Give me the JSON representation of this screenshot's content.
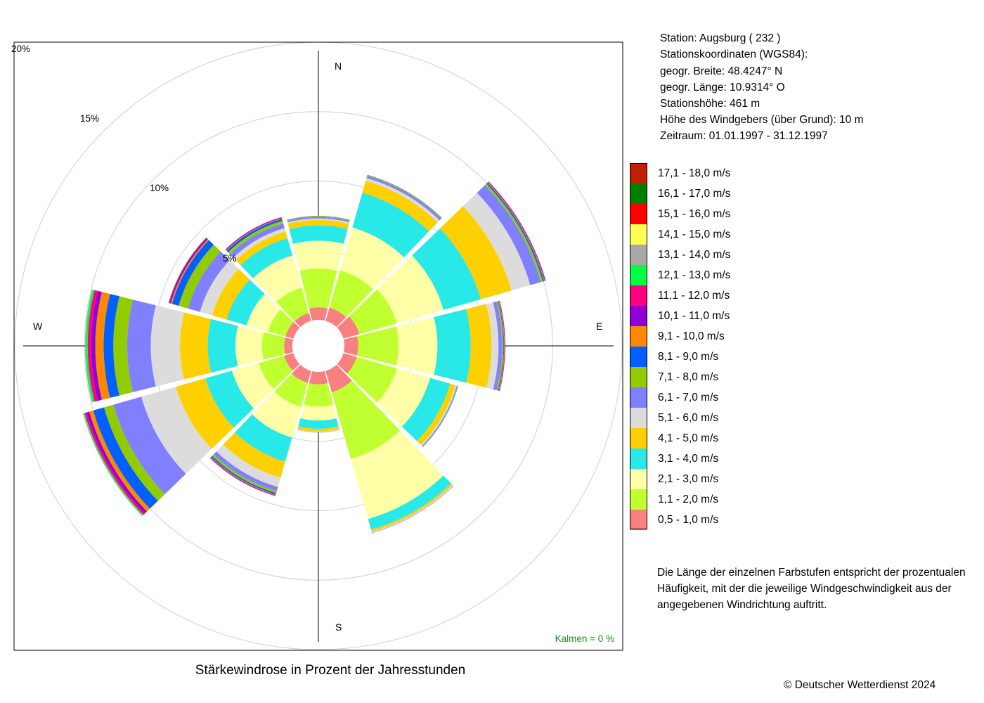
{
  "title": "Stärkewindrose in Prozent der Jahresstunden",
  "station_info": [
    "Station:  Augsburg  ( 232 )",
    "Stationskoordinaten (WGS84):",
    "geogr. Breite: 48.4247° N",
    "geogr. Länge: 10.9314° O",
    "Stationshöhe: 461 m",
    "Höhe des Windgebers (über Grund): 10 m",
    "Zeitraum: 01.01.1997 - 31.12.1997"
  ],
  "calms_label": "Kalmen  =  0 %",
  "note": "Die Länge der einzelnen Farbstufen entspricht der prozentualen Häufigkeit, mit der die jeweilige Windgeschwindigkeit aus der angegebenen Windrichtung auftritt.",
  "copyright": "© Deutscher Wetterdienst  2024",
  "chart_data": {
    "type": "windrose",
    "direction_labels": [
      "N",
      "E",
      "S",
      "W"
    ],
    "ring_labels": [
      "5%",
      "10%",
      "15%",
      "20%"
    ],
    "ring_values": [
      5,
      10,
      15,
      20
    ],
    "sector_angles_deg": [
      0,
      30,
      60,
      90,
      120,
      150,
      180,
      210,
      240,
      270,
      300,
      330
    ],
    "speed_classes": [
      {
        "label": "0,5 - 1,0 m/s",
        "color": "#f88080"
      },
      {
        "label": "1,1 - 2,0 m/s",
        "color": "#c0ff30"
      },
      {
        "label": "2,1 - 3,0 m/s",
        "color": "#ffffa8"
      },
      {
        "label": "3,1 - 4,0 m/s",
        "color": "#28e8e8"
      },
      {
        "label": "4,1 - 5,0 m/s",
        "color": "#ffd000"
      },
      {
        "label": "5,1 - 6,0 m/s",
        "color": "#dcdcdc"
      },
      {
        "label": "6,1 - 7,0 m/s",
        "color": "#8080ff"
      },
      {
        "label": "7,1 - 8,0 m/s",
        "color": "#90cc00"
      },
      {
        "label": "8,1 - 9,0 m/s",
        "color": "#0060ff"
      },
      {
        "label": "9,1 - 10,0 m/s",
        "color": "#ff8800"
      },
      {
        "label": "10,1 - 11,0 m/s",
        "color": "#9000d8"
      },
      {
        "label": "11,1 - 12,0 m/s",
        "color": "#ff0080"
      },
      {
        "label": "12,1 - 13,0 m/s",
        "color": "#00ff40"
      },
      {
        "label": "13,1 - 14,0 m/s",
        "color": "#a8a8a8"
      },
      {
        "label": "14,1 - 15,0 m/s",
        "color": "#ffff50"
      },
      {
        "label": "15,1 - 16,0 m/s",
        "color": "#ff0000"
      },
      {
        "label": "16,1 - 17,0 m/s",
        "color": "#008000"
      },
      {
        "label": "17,1 - 18,0 m/s",
        "color": "#c02000"
      }
    ],
    "sectors": [
      [
        0.9,
        2.8,
        2.0,
        1.1,
        0.4,
        0.1,
        0.1,
        0.05,
        0.03,
        0.01,
        0.0,
        0.0,
        0.0,
        0.0,
        0.0,
        0.0,
        0.0,
        0.0
      ],
      [
        1.0,
        2.8,
        3.2,
        2.6,
        0.9,
        0.2,
        0.15,
        0.05,
        0.03,
        0.01,
        0.0,
        0.0,
        0.0,
        0.0,
        0.0,
        0.0,
        0.0,
        0.0
      ],
      [
        1.2,
        2.8,
        3.5,
        2.8,
        2.3,
        1.4,
        0.8,
        0.15,
        0.1,
        0.05,
        0.04,
        0.03,
        0.0,
        0.0,
        0.0,
        0.0,
        0.0,
        0.0
      ],
      [
        1.0,
        2.9,
        2.8,
        2.4,
        1.5,
        0.5,
        0.25,
        0.1,
        0.05,
        0.04,
        0.03,
        0.02,
        0.0,
        0.0,
        0.0,
        0.0,
        0.0,
        0.0
      ],
      [
        1.0,
        3.0,
        2.5,
        1.5,
        0.4,
        0.1,
        0.05,
        0.03,
        0.02,
        0.0,
        0.0,
        0.0,
        0.0,
        0.0,
        0.0,
        0.0,
        0.0,
        0.0
      ],
      [
        1.6,
        5.0,
        4.5,
        0.8,
        0.15,
        0.08,
        0.03,
        0.0,
        0.0,
        0.0,
        0.0,
        0.0,
        0.0,
        0.0,
        0.0,
        0.0,
        0.0,
        0.0
      ],
      [
        0.9,
        1.6,
        1.0,
        0.6,
        0.2,
        0.05,
        0.02,
        0.0,
        0.0,
        0.0,
        0.0,
        0.0,
        0.0,
        0.0,
        0.0,
        0.0,
        0.0,
        0.0
      ],
      [
        0.9,
        1.8,
        2.3,
        1.8,
        1.2,
        0.7,
        0.3,
        0.15,
        0.1,
        0.05,
        0.04,
        0.03,
        0.0,
        0.0,
        0.0,
        0.0,
        0.0,
        0.0
      ],
      [
        0.7,
        1.9,
        2.0,
        2.0,
        2.2,
        2.6,
        2.1,
        0.7,
        0.8,
        0.3,
        0.2,
        0.15,
        0.08,
        0.05,
        0.0,
        0.0,
        0.0,
        0.0
      ],
      [
        0.6,
        1.6,
        1.9,
        2.0,
        2.0,
        2.1,
        1.7,
        1.0,
        0.7,
        0.6,
        0.3,
        0.25,
        0.15,
        0.05,
        0.0,
        0.0,
        0.0,
        0.0
      ],
      [
        0.6,
        1.3,
        1.6,
        1.5,
        1.1,
        0.9,
        0.9,
        0.7,
        0.5,
        0.1,
        0.1,
        0.05,
        0.02,
        0.0,
        0.0,
        0.0,
        0.0,
        0.0
      ],
      [
        0.6,
        1.9,
        2.4,
        1.3,
        0.5,
        0.25,
        0.35,
        0.2,
        0.15,
        0.05,
        0.05,
        0.03,
        0.0,
        0.0,
        0.0,
        0.0,
        0.0,
        0.0
      ]
    ]
  }
}
